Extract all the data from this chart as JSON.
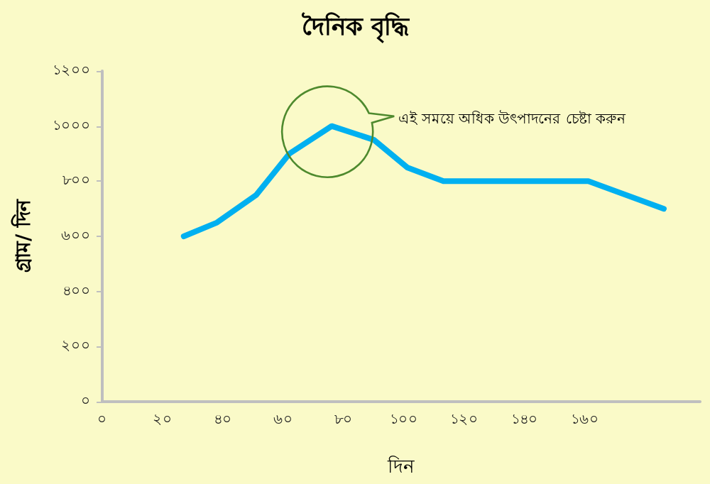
{
  "chart_data": {
    "type": "line",
    "title": "দৈনিক বৃদ্ধি",
    "xlabel": "দিন",
    "ylabel": "গ্রাম/ দিন",
    "x": [
      27,
      38,
      51,
      62,
      76,
      90,
      101,
      113,
      161,
      186
    ],
    "series": [
      {
        "color": "#00b0f0",
        "values": [
          600,
          650,
          750,
          900,
          1000,
          950,
          850,
          800,
          800,
          700
        ]
      }
    ],
    "xlim": [
      0,
      198
    ],
    "xticks": [
      {
        "value": 0,
        "label": "০"
      },
      {
        "value": 20,
        "label": "২০"
      },
      {
        "value": 40,
        "label": "৪০"
      },
      {
        "value": 60,
        "label": "৬০"
      },
      {
        "value": 80,
        "label": "৮০"
      },
      {
        "value": 100,
        "label": "১০০"
      },
      {
        "value": 120,
        "label": "১২০"
      },
      {
        "value": 140,
        "label": "১৪০"
      },
      {
        "value": 160,
        "label": "১৬০"
      }
    ],
    "ylim": [
      0,
      1200
    ],
    "yticks": [
      {
        "value": 0,
        "label": "০"
      },
      {
        "value": 200,
        "label": "২০০"
      },
      {
        "value": 400,
        "label": "৪০০"
      },
      {
        "value": 600,
        "label": "৬০০"
      },
      {
        "value": 800,
        "label": "৮০০"
      },
      {
        "value": 1000,
        "label": "১০০০"
      },
      {
        "value": 1200,
        "label": "১২০০"
      }
    ],
    "annotations": [
      "এই সময়ে অধিক উৎপাদনের চেষ্টা করুন"
    ],
    "grid": false,
    "marker": "none",
    "line_style": "solid"
  }
}
